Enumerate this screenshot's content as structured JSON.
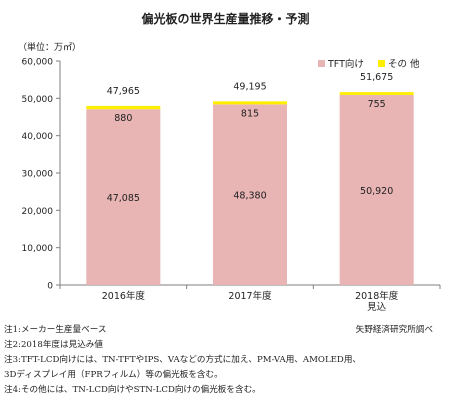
{
  "chart_data": {
    "type": "bar",
    "title": "偏光板の世界生産量推移・予測",
    "ylabel": "（単位：万㎡）",
    "ylim": [
      0,
      60000
    ],
    "yticks": [
      "0",
      "10,000",
      "20,000",
      "30,000",
      "40,000",
      "50,000",
      "60,000"
    ],
    "categories": [
      [
        "2016年度"
      ],
      [
        "2017年度"
      ],
      [
        "2018年度",
        "見込"
      ]
    ],
    "series": [
      {
        "name": "TFT向け",
        "values": [
          47085,
          48380,
          50920
        ],
        "labels": [
          "47,085",
          "48,380",
          "50,920"
        ],
        "color": "#e8b4b4"
      },
      {
        "name": "その 他",
        "values": [
          880,
          815,
          755
        ],
        "labels": [
          "880",
          "815",
          "755"
        ],
        "color": "#ffee00"
      }
    ],
    "totals": [
      "47,965",
      "49,195",
      "51,675"
    ],
    "legend": "top-right",
    "grid": false
  },
  "notes": [
    "注1:メーカー生産量ベース",
    "注2:2018年度は見込み値",
    "注3:TFT-LCD向けには、TN-TFTやIPS、VAなどの方式に加え、PM-VA用、AMOLED用、",
    "3Dディスプレイ用（FPRフィルム）等の偏光板を含む。",
    "注4:その他には、TN-LCD向けやSTN-LCD向けの偏光板を含む。"
  ],
  "source": "矢野経済研究所調べ"
}
